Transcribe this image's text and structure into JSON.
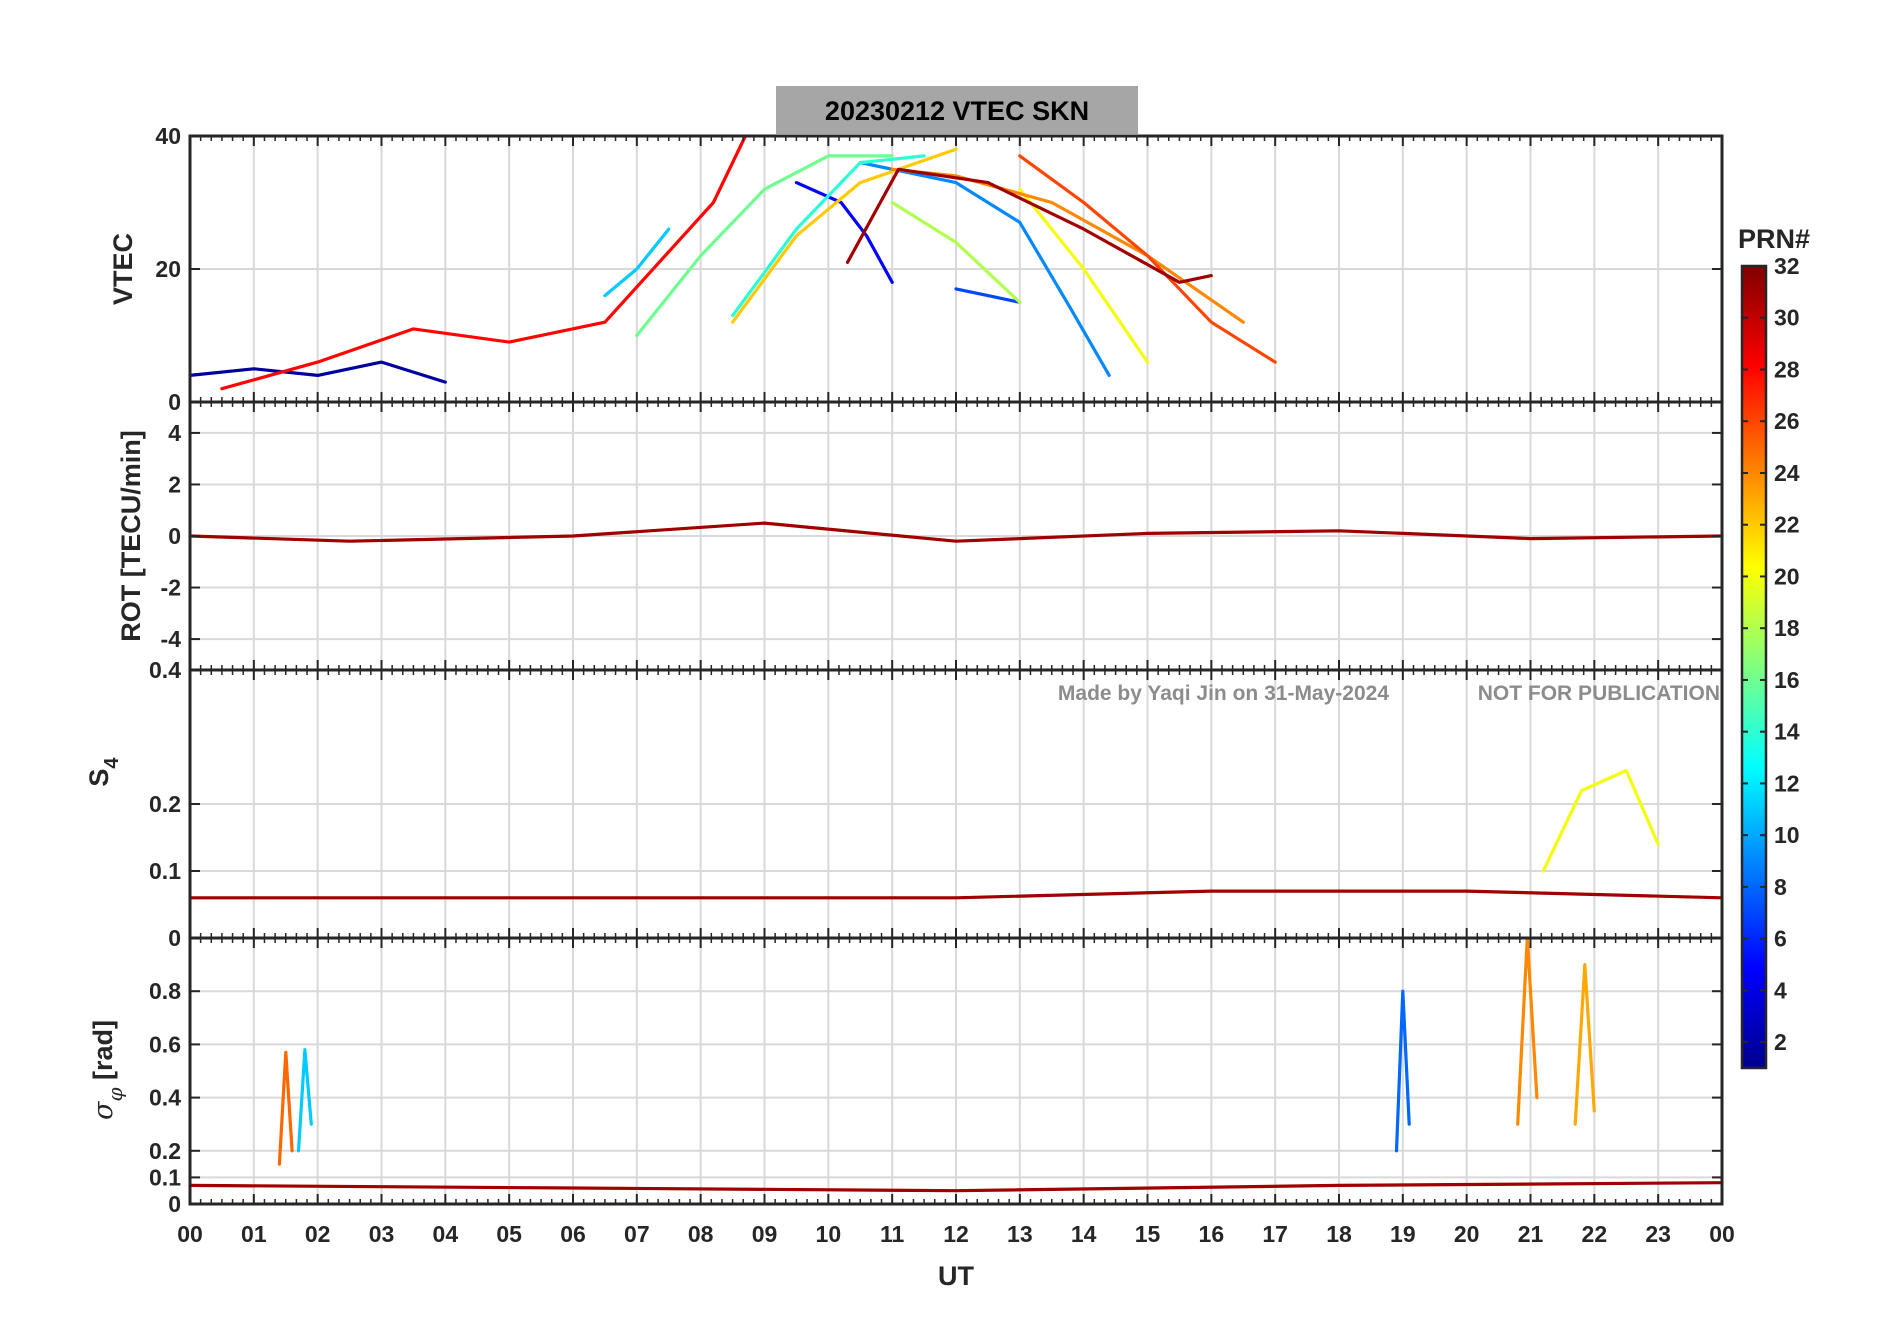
{
  "chart_data": {
    "type": "line",
    "title": "20230212    VTEC  SKN",
    "xlabel": "UT",
    "xlim": [
      0,
      24
    ],
    "x_ticks": [
      "00",
      "01",
      "02",
      "03",
      "04",
      "05",
      "06",
      "07",
      "08",
      "09",
      "10",
      "11",
      "12",
      "13",
      "14",
      "15",
      "16",
      "17",
      "18",
      "19",
      "20",
      "21",
      "22",
      "23",
      "00"
    ],
    "colorbar": {
      "label": "PRN#",
      "range": [
        1,
        32
      ],
      "ticks": [
        "2",
        "4",
        "6",
        "8",
        "10",
        "12",
        "14",
        "16",
        "18",
        "20",
        "22",
        "24",
        "26",
        "28",
        "30",
        "32"
      ]
    },
    "watermark": {
      "author": "Made by Yaqi Jin on 31-May-2024",
      "note": "NOT FOR PUBLICATION"
    },
    "panels": [
      {
        "id": "vtec",
        "ylabel": "VTEC",
        "ylim": [
          0,
          40
        ],
        "y_ticks": [
          {
            "value": 0,
            "label": "0"
          },
          {
            "value": 20,
            "label": "20"
          },
          {
            "value": 40,
            "label": "40"
          }
        ],
        "series": [
          {
            "name": "PRN 2",
            "prn": 2,
            "x": [
              0,
              1,
              2,
              3,
              4
            ],
            "y": [
              4,
              5,
              4,
              6,
              3
            ]
          },
          {
            "name": "PRN 5",
            "prn": 5,
            "x": [
              9.5,
              10.2,
              10.6,
              11.0
            ],
            "y": [
              33,
              30,
              25,
              18
            ]
          },
          {
            "name": "PRN 7",
            "prn": 7,
            "x": [
              12,
              12.5,
              13
            ],
            "y": [
              17,
              16,
              15
            ]
          },
          {
            "name": "PRN 9",
            "prn": 9,
            "x": [
              10.5,
              12,
              13,
              13.8,
              14.4
            ],
            "y": [
              36,
              33,
              27,
              14,
              4
            ]
          },
          {
            "name": "PRN 11",
            "prn": 11,
            "x": [
              6.5,
              7,
              7.5
            ],
            "y": [
              16,
              20,
              26
            ]
          },
          {
            "name": "PRN 14",
            "prn": 14,
            "x": [
              8.5,
              9.5,
              10.5,
              11.5
            ],
            "y": [
              13,
              26,
              36,
              37
            ]
          },
          {
            "name": "PRN 16",
            "prn": 16,
            "x": [
              7,
              8,
              9,
              10,
              11
            ],
            "y": [
              10,
              22,
              32,
              37,
              37
            ]
          },
          {
            "name": "PRN 18",
            "prn": 18,
            "x": [
              11,
              12,
              13
            ],
            "y": [
              30,
              24,
              15
            ]
          },
          {
            "name": "PRN 20",
            "prn": 20,
            "x": [
              13,
              14,
              15
            ],
            "y": [
              32,
              20,
              6
            ]
          },
          {
            "name": "PRN 22",
            "prn": 22,
            "x": [
              8.5,
              9.5,
              10.5,
              12
            ],
            "y": [
              12,
              25,
              33,
              38
            ]
          },
          {
            "name": "PRN 24",
            "prn": 24,
            "x": [
              11,
              12,
              13.5,
              15,
              16.5
            ],
            "y": [
              35,
              34,
              30,
              22,
              12
            ]
          },
          {
            "name": "PRN 26",
            "prn": 26,
            "x": [
              13,
              14,
              15,
              16,
              17
            ],
            "y": [
              37,
              30,
              22,
              12,
              6
            ]
          },
          {
            "name": "PRN 28",
            "prn": 28,
            "x": [
              0.5,
              2,
              3.5,
              5,
              6.5,
              8.2,
              8.7
            ],
            "y": [
              2,
              6,
              11,
              9,
              12,
              30,
              40
            ]
          },
          {
            "name": "PRN 31",
            "prn": 31,
            "x": [
              10.3,
              11.1,
              12.5,
              14,
              15.5,
              16
            ],
            "y": [
              21,
              35,
              33,
              26,
              18,
              19
            ]
          }
        ]
      },
      {
        "id": "rot",
        "ylabel": "ROT [TECU/min]",
        "ylim": [
          -5.2,
          5.2
        ],
        "y_ticks": [
          {
            "value": -4,
            "label": "-4"
          },
          {
            "value": -2,
            "label": "-2"
          },
          {
            "value": 0,
            "label": "0"
          },
          {
            "value": 2,
            "label": "2"
          },
          {
            "value": 4,
            "label": "4"
          }
        ],
        "series": [
          {
            "name": "PRN 31",
            "prn": 31,
            "x": [
              0,
              2.5,
              6,
              9,
              12,
              15,
              18,
              21,
              24
            ],
            "y": [
              0,
              -0.2,
              0,
              0.5,
              -0.2,
              0.1,
              0.2,
              -0.1,
              0
            ]
          }
        ]
      },
      {
        "id": "s4",
        "ylabel": "S4",
        "ylim": [
          0,
          0.4
        ],
        "y_ticks": [
          {
            "value": 0,
            "label": "0"
          },
          {
            "value": 0.1,
            "label": "0.1"
          },
          {
            "value": 0.2,
            "label": "0.2"
          },
          {
            "value": 0.4,
            "label": "0.4"
          }
        ],
        "series": [
          {
            "name": "PRN 31",
            "prn": 31,
            "x": [
              0,
              4,
              8,
              12,
              16,
              20,
              24
            ],
            "y": [
              0.06,
              0.06,
              0.06,
              0.06,
              0.07,
              0.07,
              0.06
            ]
          },
          {
            "name": "PRN 20",
            "prn": 20,
            "x": [
              21.2,
              21.8,
              22.5,
              23
            ],
            "y": [
              0.1,
              0.22,
              0.25,
              0.14
            ]
          }
        ]
      },
      {
        "id": "sigphi",
        "ylabel": "σφ [rad]",
        "ylim": [
          0,
          1.0
        ],
        "y_ticks": [
          {
            "value": 0,
            "label": "0"
          },
          {
            "value": 0.1,
            "label": "0.1"
          },
          {
            "value": 0.2,
            "label": "0.2"
          },
          {
            "value": 0.4,
            "label": "0.4"
          },
          {
            "value": 0.6,
            "label": "0.6"
          },
          {
            "value": 0.8,
            "label": "0.8"
          }
        ],
        "series": [
          {
            "name": "PRN 25",
            "prn": 25,
            "x": [
              1.4,
              1.5,
              1.6
            ],
            "y": [
              0.15,
              0.57,
              0.2
            ]
          },
          {
            "name": "PRN 11",
            "prn": 11,
            "x": [
              1.7,
              1.8,
              1.9
            ],
            "y": [
              0.2,
              0.58,
              0.3
            ]
          },
          {
            "name": "PRN 8",
            "prn": 8,
            "x": [
              18.9,
              19,
              19.1
            ],
            "y": [
              0.2,
              0.8,
              0.3
            ]
          },
          {
            "name": "PRN 24",
            "prn": 24,
            "x": [
              20.8,
              20.95,
              21.1
            ],
            "y": [
              0.3,
              1.0,
              0.4
            ]
          },
          {
            "name": "PRN 23",
            "prn": 23,
            "x": [
              21.7,
              21.85,
              22
            ],
            "y": [
              0.3,
              0.9,
              0.35
            ]
          },
          {
            "name": "PRN 31",
            "prn": 31,
            "x": [
              0,
              6,
              12,
              18,
              24
            ],
            "y": [
              0.07,
              0.06,
              0.05,
              0.07,
              0.08
            ]
          }
        ]
      }
    ]
  }
}
